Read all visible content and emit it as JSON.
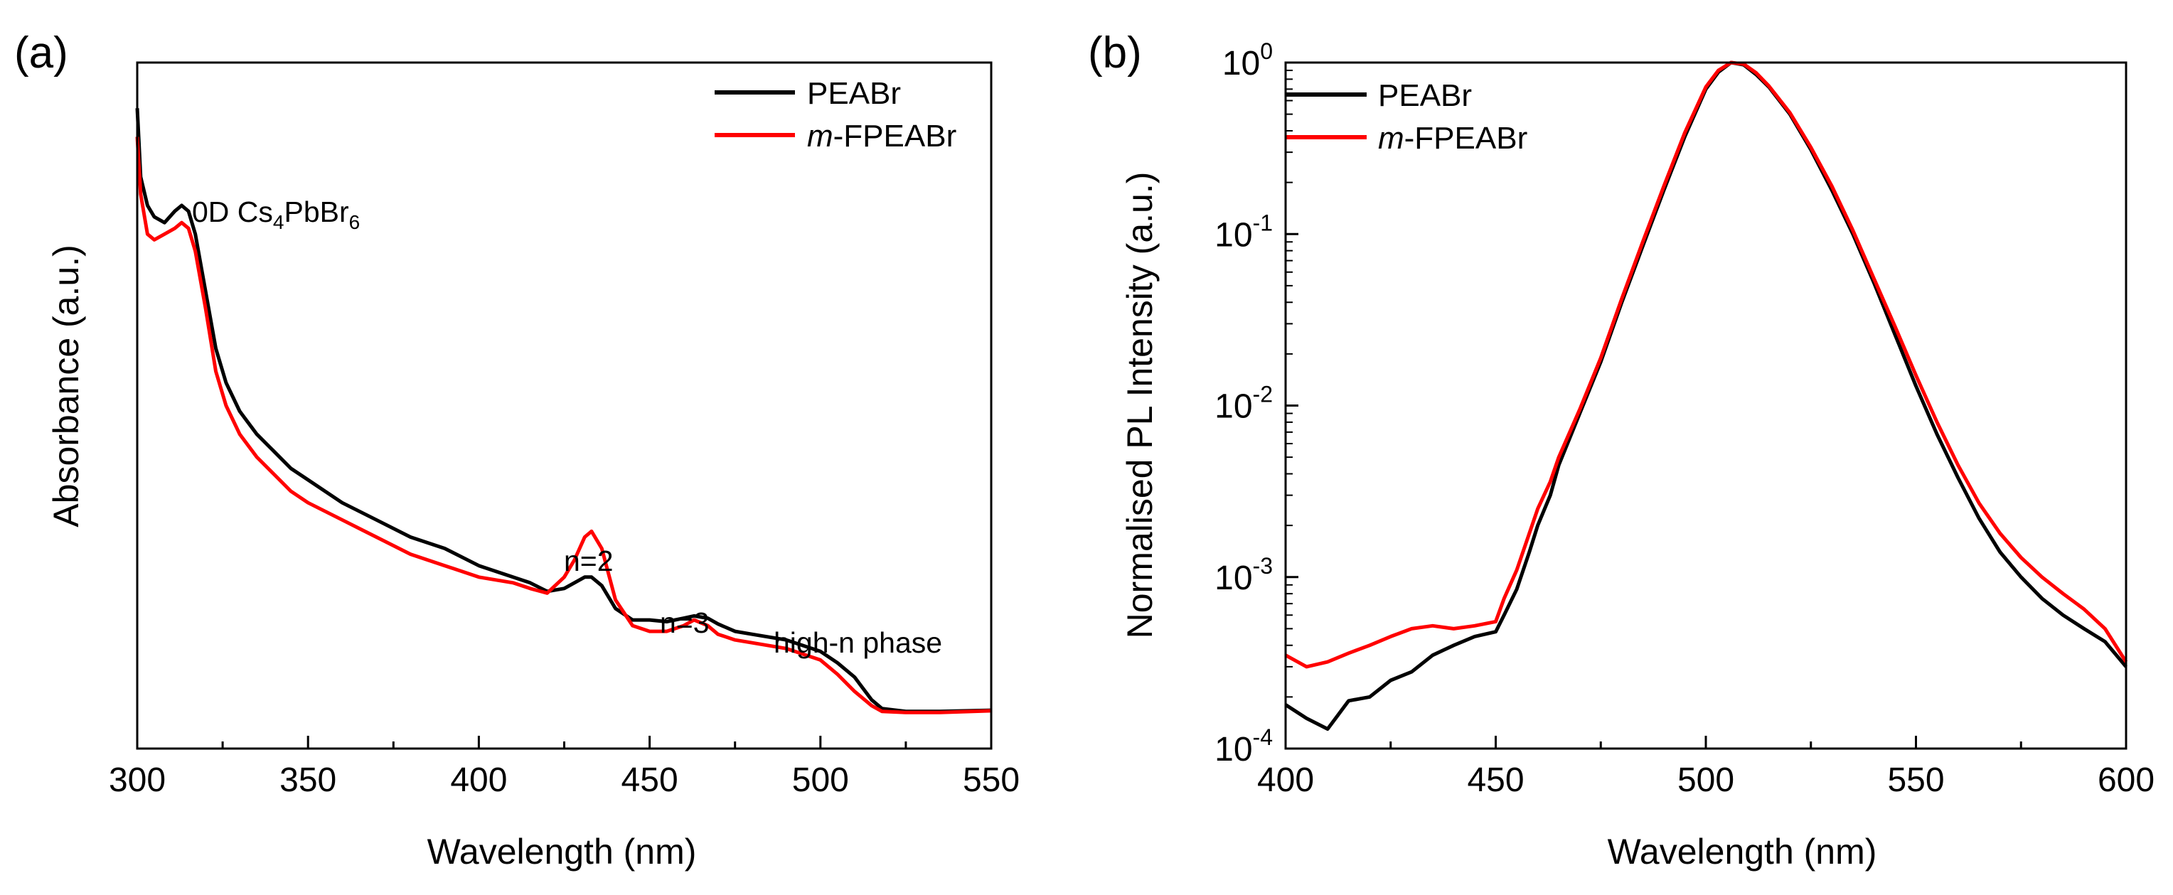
{
  "chart_data": [
    {
      "panel": "(a)",
      "type": "line",
      "title": "",
      "xlabel": "Wavelength (nm)",
      "ylabel": "Absorbance (a.u.)",
      "xlim": [
        300,
        550
      ],
      "ylim": [
        0,
        1.2
      ],
      "y_ticks_shown": false,
      "xticks": [
        300,
        350,
        400,
        450,
        500,
        550
      ],
      "xtick_labels": [
        "300",
        "350",
        "400",
        "450",
        "500",
        "550"
      ],
      "legend": {
        "position": "top-right",
        "entries": [
          "PEABr",
          "m-FPEABr"
        ]
      },
      "annotations": [
        {
          "text": "0D Cs4PbBr6",
          "main": "0D Cs",
          "sub1": "4",
          "mid": "PbBr",
          "sub2": "6",
          "x": 313,
          "y": 1.04
        },
        {
          "text": "n=2",
          "x": 433,
          "y": 0.35
        },
        {
          "text": "n=3",
          "x": 463,
          "y": 0.23
        },
        {
          "text": "high-n phase",
          "x": 520,
          "y": 0.17
        }
      ],
      "series": [
        {
          "name": "PEABr",
          "color": "#000000",
          "x": [
            300,
            301,
            303,
            305,
            308,
            311,
            313,
            315,
            317,
            320,
            323,
            326,
            330,
            335,
            340,
            345,
            350,
            360,
            370,
            380,
            390,
            400,
            410,
            415,
            420,
            425,
            428,
            431,
            433,
            436,
            440,
            445,
            450,
            455,
            460,
            463,
            467,
            470,
            475,
            480,
            490,
            500,
            505,
            510,
            515,
            518,
            525,
            535,
            550
          ],
          "y": [
            1.12,
            1.0,
            0.95,
            0.93,
            0.92,
            0.94,
            0.95,
            0.94,
            0.9,
            0.8,
            0.7,
            0.64,
            0.59,
            0.55,
            0.52,
            0.49,
            0.47,
            0.43,
            0.4,
            0.37,
            0.35,
            0.32,
            0.3,
            0.29,
            0.275,
            0.28,
            0.29,
            0.3,
            0.3,
            0.285,
            0.245,
            0.225,
            0.225,
            0.222,
            0.228,
            0.232,
            0.228,
            0.218,
            0.205,
            0.2,
            0.19,
            0.17,
            0.15,
            0.125,
            0.085,
            0.07,
            0.065,
            0.065,
            0.067
          ]
        },
        {
          "name": "m-FPEABr",
          "color": "#ff0000",
          "x": [
            300,
            301,
            303,
            305,
            308,
            311,
            313,
            315,
            317,
            320,
            323,
            326,
            330,
            335,
            340,
            345,
            350,
            360,
            370,
            380,
            390,
            400,
            410,
            415,
            420,
            425,
            428,
            431,
            433,
            436,
            440,
            445,
            450,
            455,
            460,
            463,
            467,
            470,
            475,
            480,
            490,
            500,
            505,
            510,
            515,
            518,
            525,
            535,
            550
          ],
          "y": [
            1.07,
            0.97,
            0.9,
            0.89,
            0.9,
            0.91,
            0.92,
            0.91,
            0.87,
            0.77,
            0.66,
            0.6,
            0.55,
            0.51,
            0.48,
            0.45,
            0.43,
            0.4,
            0.37,
            0.34,
            0.32,
            0.3,
            0.29,
            0.28,
            0.272,
            0.3,
            0.33,
            0.37,
            0.38,
            0.35,
            0.26,
            0.215,
            0.205,
            0.205,
            0.215,
            0.225,
            0.215,
            0.2,
            0.19,
            0.185,
            0.175,
            0.155,
            0.13,
            0.1,
            0.075,
            0.065,
            0.063,
            0.063,
            0.066
          ]
        }
      ]
    },
    {
      "panel": "(b)",
      "type": "line",
      "title": "",
      "xlabel": "Wavelength (nm)",
      "ylabel": "Normalised PL Intensity (a.u.)",
      "xlim": [
        400,
        600
      ],
      "ylim": [
        0.0001,
        1
      ],
      "yscale": "log",
      "xticks": [
        400,
        450,
        500,
        550,
        600
      ],
      "xtick_labels": [
        "400",
        "450",
        "500",
        "550",
        "600"
      ],
      "yticks": [
        {
          "value": 0.0001,
          "base": "10",
          "exp": "-4"
        },
        {
          "value": 0.001,
          "base": "10",
          "exp": "-3"
        },
        {
          "value": 0.01,
          "base": "10",
          "exp": "-2"
        },
        {
          "value": 0.1,
          "base": "10",
          "exp": "-1"
        },
        {
          "value": 1,
          "base": "10",
          "exp": "0"
        }
      ],
      "legend": {
        "position": "top-left",
        "entries": [
          "PEABr",
          "m-FPEABr"
        ]
      },
      "series": [
        {
          "name": "PEABr",
          "color": "#000000",
          "x": [
            400,
            405,
            410,
            415,
            420,
            425,
            430,
            435,
            440,
            445,
            450,
            452,
            455,
            458,
            460,
            463,
            465,
            470,
            475,
            480,
            485,
            490,
            495,
            500,
            503,
            506,
            509,
            512,
            515,
            520,
            525,
            530,
            535,
            540,
            545,
            550,
            555,
            560,
            565,
            570,
            575,
            580,
            585,
            590,
            595,
            600
          ],
          "y": [
            0.00018,
            0.00015,
            0.00013,
            0.00019,
            0.0002,
            0.00025,
            0.00028,
            0.00035,
            0.0004,
            0.00045,
            0.00048,
            0.0006,
            0.00085,
            0.0014,
            0.002,
            0.003,
            0.0045,
            0.009,
            0.018,
            0.04,
            0.085,
            0.18,
            0.37,
            0.7,
            0.88,
            1.0,
            0.97,
            0.85,
            0.72,
            0.5,
            0.31,
            0.18,
            0.1,
            0.052,
            0.026,
            0.013,
            0.0068,
            0.0038,
            0.0022,
            0.0014,
            0.001,
            0.00075,
            0.0006,
            0.0005,
            0.00042,
            0.0003
          ]
        },
        {
          "name": "m-FPEABr",
          "color": "#ff0000",
          "x": [
            400,
            405,
            410,
            415,
            420,
            425,
            430,
            435,
            440,
            445,
            450,
            452,
            455,
            458,
            460,
            463,
            465,
            470,
            475,
            480,
            485,
            490,
            495,
            500,
            503,
            506,
            509,
            512,
            515,
            520,
            525,
            530,
            535,
            540,
            545,
            550,
            555,
            560,
            565,
            570,
            575,
            580,
            585,
            590,
            595,
            600
          ],
          "y": [
            0.00035,
            0.0003,
            0.00032,
            0.00036,
            0.0004,
            0.00045,
            0.0005,
            0.00052,
            0.0005,
            0.00052,
            0.00055,
            0.00075,
            0.0011,
            0.0018,
            0.0025,
            0.0036,
            0.005,
            0.0095,
            0.019,
            0.042,
            0.09,
            0.19,
            0.39,
            0.72,
            0.9,
            1.0,
            0.98,
            0.87,
            0.73,
            0.51,
            0.32,
            0.19,
            0.105,
            0.055,
            0.029,
            0.015,
            0.008,
            0.0045,
            0.0027,
            0.0018,
            0.0013,
            0.001,
            0.0008,
            0.00065,
            0.0005,
            0.00032
          ]
        }
      ]
    }
  ]
}
